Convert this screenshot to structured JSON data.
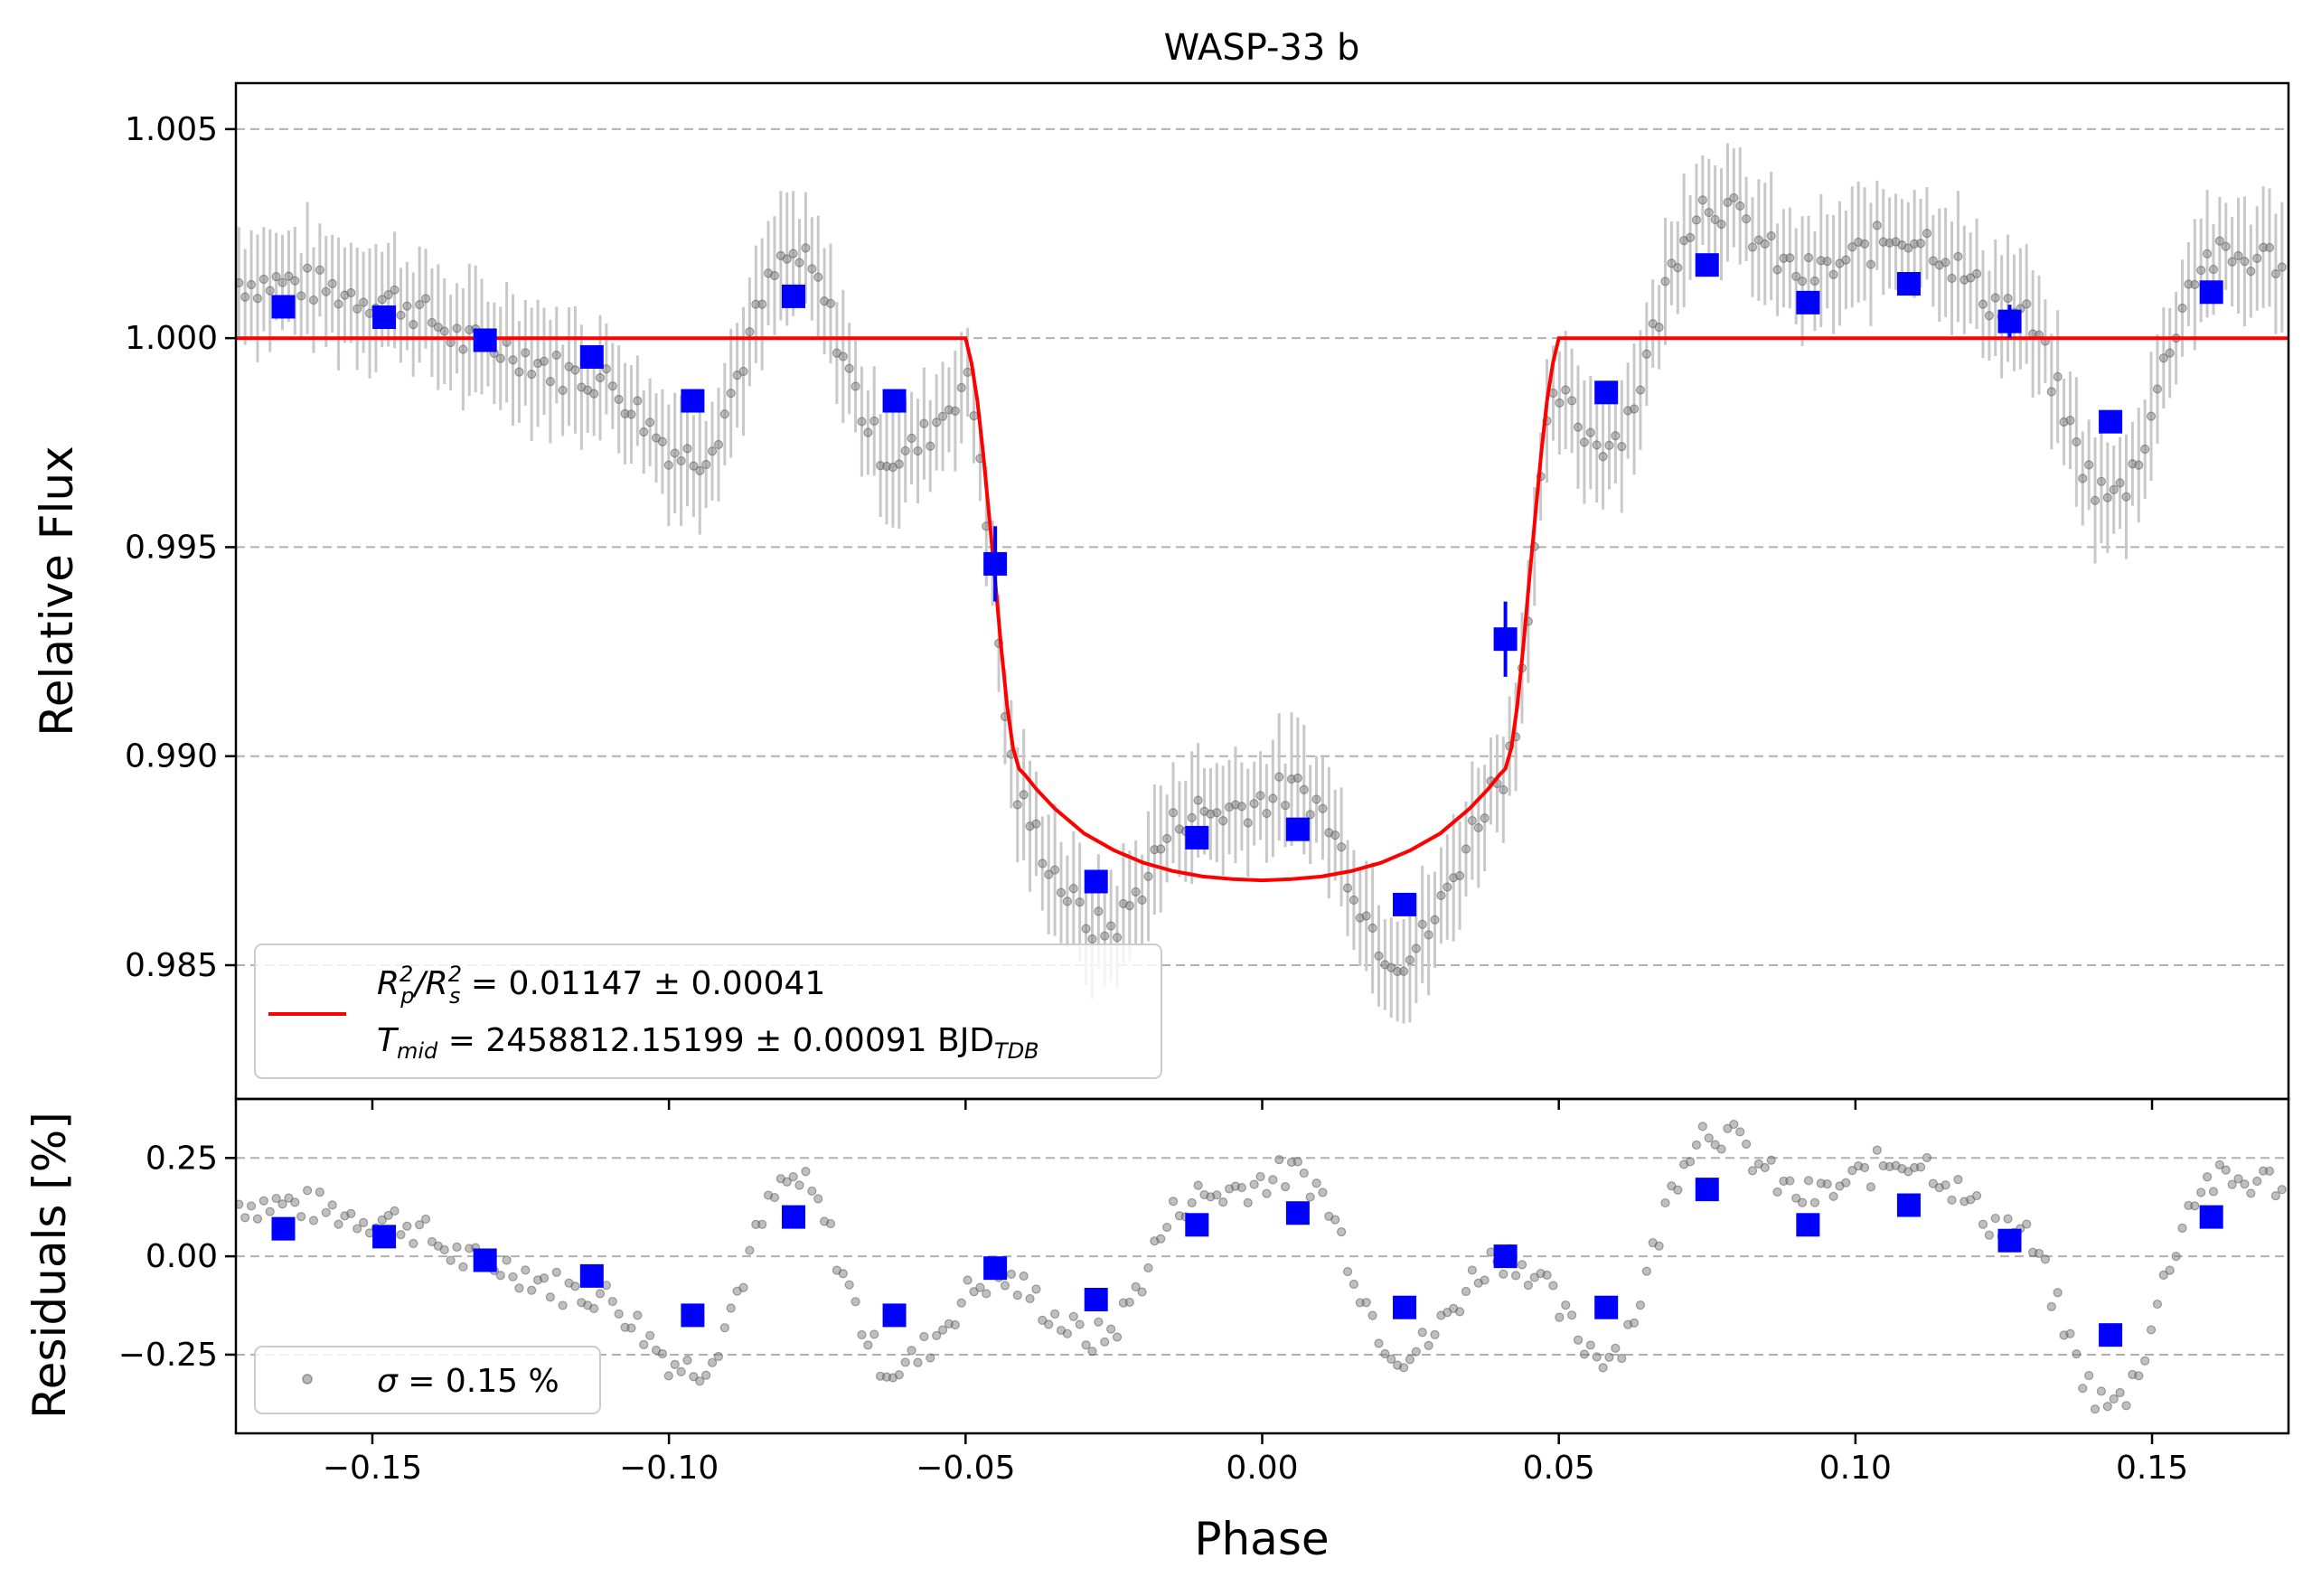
{
  "chart_data": [
    {
      "type": "scatter",
      "panel": "light-curve",
      "title": "WASP-33 b",
      "xlabel": "",
      "ylabel": "Relative Flux",
      "xlim": [
        -0.173,
        0.173
      ],
      "ylim": [
        0.9818,
        1.0061
      ],
      "grid": "horizontal dashed",
      "legend_position": "lower-left",
      "y_ticks": [
        "0.985",
        "0.990",
        "0.995",
        "1.000",
        "1.005"
      ],
      "y_tick_values": [
        0.985,
        0.99,
        0.995,
        1.0,
        1.005
      ],
      "colors": {
        "model": "#ff0000",
        "binned": "#0000ff",
        "raw": "#808080",
        "errorbar": "#c8c8c8",
        "grid": "#b0b0b0"
      },
      "legend": {
        "line1_rp": "R",
        "line1_p": "p",
        "line1_sup": "2",
        "line1_rs": "/R",
        "line1_s": "s",
        "line1_value": " = 0.01147 ± 0.00041",
        "line2_t": "T",
        "line2_sub": "mid",
        "line2_value": " = 2458812.15199 ± 0.00091 BJD",
        "line2_unit_sub": "TDB"
      },
      "model": {
        "name": "transit model",
        "depth": 0.01147,
        "x": [
          -0.173,
          -0.05,
          -0.049,
          -0.048,
          -0.047,
          -0.046,
          -0.045,
          -0.044,
          -0.043,
          -0.042,
          -0.041,
          -0.04,
          -0.038,
          -0.035,
          -0.03,
          -0.025,
          -0.02,
          -0.015,
          -0.01,
          -0.005,
          0.0,
          0.005,
          0.01,
          0.015,
          0.02,
          0.025,
          0.03,
          0.035,
          0.038,
          0.04,
          0.041,
          0.042,
          0.043,
          0.044,
          0.045,
          0.046,
          0.047,
          0.048,
          0.049,
          0.05,
          0.173
        ],
        "y": [
          1.0,
          1.0,
          0.9994,
          0.9985,
          0.9972,
          0.9957,
          0.9942,
          0.9926,
          0.9912,
          0.9902,
          0.9897,
          0.98955,
          0.9892,
          0.98875,
          0.98815,
          0.98775,
          0.98745,
          0.98725,
          0.98712,
          0.98706,
          0.98703,
          0.98706,
          0.98712,
          0.98725,
          0.98745,
          0.98775,
          0.98815,
          0.98875,
          0.9892,
          0.98955,
          0.9897,
          0.9902,
          0.9912,
          0.9926,
          0.9942,
          0.9957,
          0.9972,
          0.9985,
          0.9994,
          1.0,
          1.0
        ]
      },
      "binned": {
        "x": [
          -0.165,
          -0.148,
          -0.131,
          -0.113,
          -0.096,
          -0.079,
          -0.062,
          -0.045,
          -0.028,
          -0.011,
          0.006,
          0.024,
          0.041,
          0.058,
          0.075,
          0.092,
          0.109,
          0.126,
          0.143,
          0.16
        ],
        "y": [
          1.00075,
          1.0005,
          0.99995,
          0.99955,
          0.9985,
          1.001,
          0.9985,
          0.9946,
          0.987,
          0.98805,
          0.98825,
          0.98645,
          0.9928,
          0.9987,
          1.00175,
          1.00085,
          1.0013,
          1.0004,
          0.998,
          1.0011
        ],
        "yerr": [
          0.0001,
          0.0001,
          0.0001,
          0.0001,
          0.0001,
          0.0001,
          0.0001,
          0.0009,
          0.0001,
          0.0001,
          0.0001,
          0.0001,
          0.0009,
          0.0001,
          0.0001,
          0.0001,
          0.0001,
          0.0004,
          0.0001,
          0.0001
        ]
      }
    },
    {
      "type": "scatter",
      "panel": "residuals",
      "xlabel": "Phase",
      "ylabel": "Residuals [%]",
      "xlim": [
        -0.173,
        0.173
      ],
      "ylim": [
        -0.45,
        0.4
      ],
      "grid": "horizontal dashed",
      "legend_position": "lower-left",
      "x_ticks": [
        "−0.15",
        "−0.10",
        "−0.05",
        "0.00",
        "0.05",
        "0.10",
        "0.15"
      ],
      "x_tick_values": [
        -0.15,
        -0.1,
        -0.05,
        0.0,
        0.05,
        0.1,
        0.15
      ],
      "y_ticks": [
        "−0.25",
        "0.00",
        "0.25"
      ],
      "y_tick_values": [
        -0.25,
        0.0,
        0.25
      ],
      "legend": {
        "sigma_symbol": "σ",
        "sigma_value": " = 0.15 %"
      },
      "binned": {
        "x": [
          -0.165,
          -0.148,
          -0.131,
          -0.113,
          -0.096,
          -0.079,
          -0.062,
          -0.045,
          -0.028,
          -0.011,
          0.006,
          0.024,
          0.041,
          0.058,
          0.075,
          0.092,
          0.109,
          0.126,
          0.143,
          0.16
        ],
        "y": [
          0.07,
          0.05,
          -0.01,
          -0.05,
          -0.15,
          0.1,
          -0.15,
          -0.03,
          -0.11,
          0.08,
          0.11,
          -0.13,
          0.0,
          -0.13,
          0.17,
          0.08,
          0.13,
          0.04,
          -0.2,
          0.1
        ]
      }
    }
  ]
}
